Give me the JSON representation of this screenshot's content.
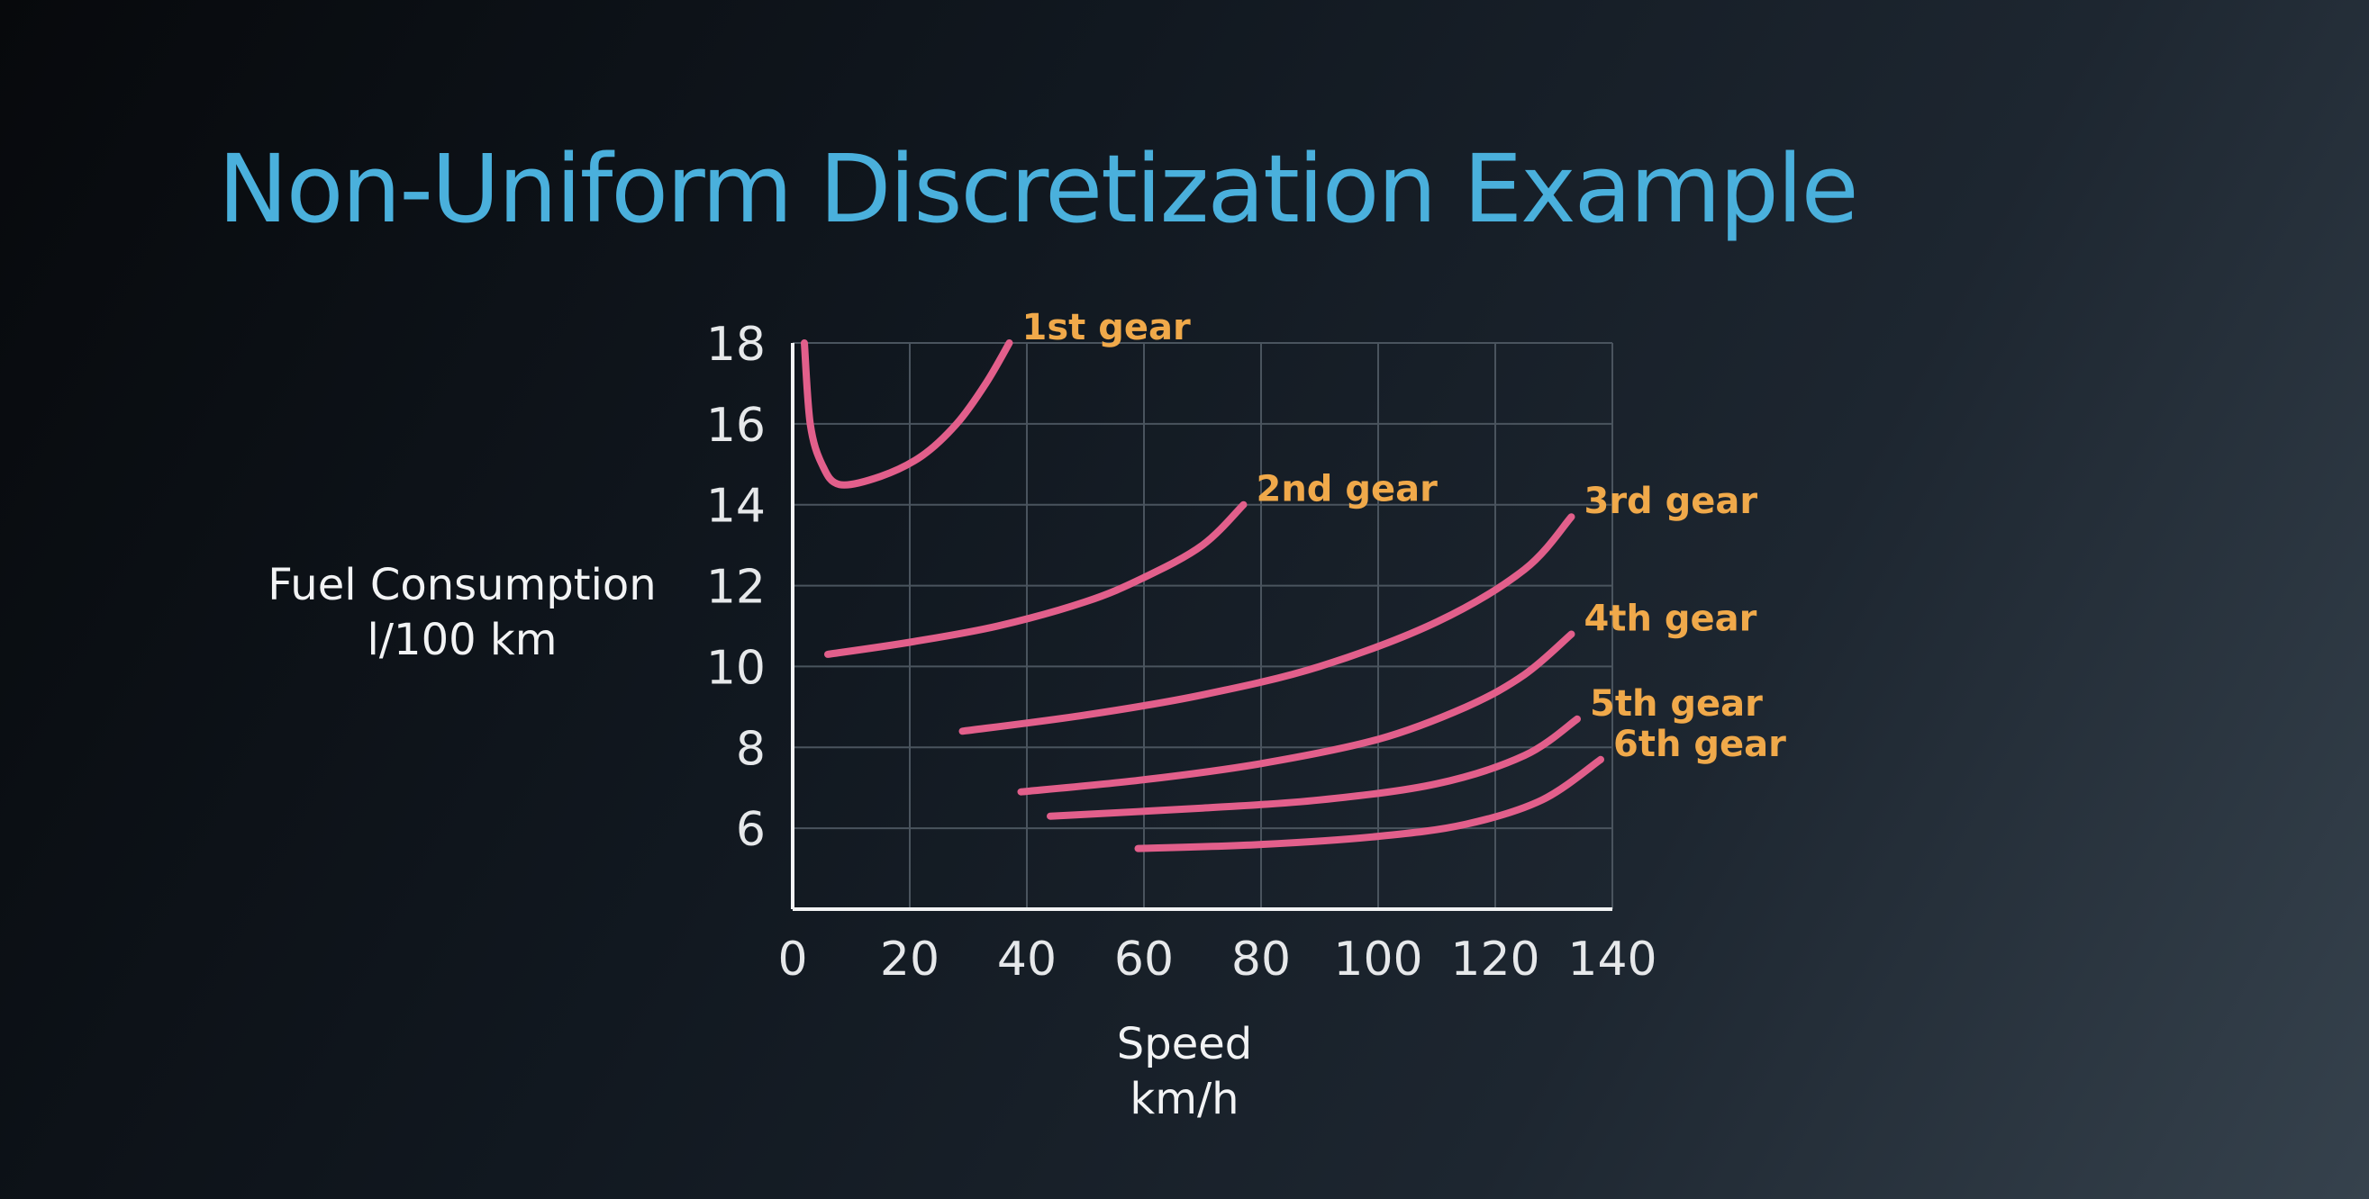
{
  "slide": {
    "title": "Non-Uniform Discretization Example"
  },
  "colors": {
    "title": "#4ab0dc",
    "line": "#e25f8b",
    "label": "#f0a94a",
    "grid": "#4a545e",
    "axis": "#f2f3f4"
  },
  "chart_data": {
    "type": "line",
    "title": "",
    "xlabel_lines": [
      "Speed",
      "km/h"
    ],
    "ylabel_lines": [
      "Fuel Consumption",
      "l/100 km"
    ],
    "xlim": [
      0,
      140
    ],
    "ylim": [
      4,
      18
    ],
    "xticks": [
      0,
      20,
      40,
      60,
      80,
      100,
      120,
      140
    ],
    "xtick_labels": [
      "0",
      "20",
      "40",
      "60",
      "80",
      "100",
      "120",
      "140"
    ],
    "yticks": [
      6,
      8,
      10,
      12,
      14,
      16,
      18
    ],
    "ytick_labels": [
      "6",
      "8",
      "10",
      "12",
      "14",
      "16",
      "18"
    ],
    "grid": true,
    "legend": "none",
    "series": [
      {
        "label": "1st gear",
        "x": [
          2,
          3,
          5,
          8,
          15,
          22,
          28,
          33,
          37
        ],
        "y": [
          18,
          16,
          15,
          14.5,
          14.7,
          15.2,
          16,
          17,
          18
        ]
      },
      {
        "label": "2nd gear",
        "x": [
          6,
          20,
          35,
          50,
          60,
          70,
          77
        ],
        "y": [
          10.3,
          10.6,
          11,
          11.6,
          12.2,
          13,
          14
        ]
      },
      {
        "label": "3rd gear",
        "x": [
          29,
          50,
          70,
          90,
          110,
          125,
          133
        ],
        "y": [
          8.4,
          8.8,
          9.3,
          10,
          11.1,
          12.4,
          13.7
        ]
      },
      {
        "label": "4th gear",
        "x": [
          39,
          60,
          80,
          100,
          115,
          125,
          133
        ],
        "y": [
          6.9,
          7.2,
          7.6,
          8.2,
          9,
          9.8,
          10.8
        ]
      },
      {
        "label": "5th gear",
        "x": [
          44,
          70,
          90,
          110,
          125,
          134
        ],
        "y": [
          6.3,
          6.5,
          6.7,
          7.1,
          7.8,
          8.7
        ]
      },
      {
        "label": "6th gear",
        "x": [
          59,
          80,
          100,
          115,
          128,
          138
        ],
        "y": [
          5.5,
          5.6,
          5.8,
          6.1,
          6.7,
          7.7
        ]
      }
    ]
  }
}
